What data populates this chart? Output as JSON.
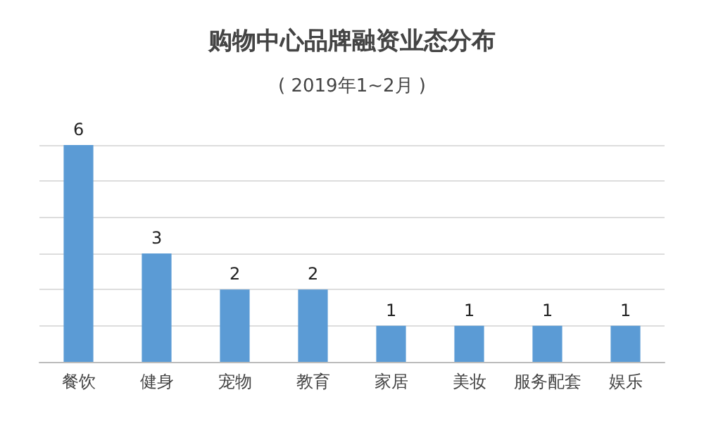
{
  "chart_data": {
    "type": "bar",
    "title": "购物中心品牌融资业态分布",
    "subtitle": "( 2019年1~2月 )",
    "categories": [
      "餐饮",
      "健身",
      "宠物",
      "教育",
      "家居",
      "美妆",
      "服务配套",
      "娱乐"
    ],
    "values": [
      6,
      3,
      2,
      2,
      1,
      1,
      1,
      1
    ],
    "color": "#5b9bd5",
    "ylim": [
      0,
      6
    ],
    "yticks": [
      {
        "value": 0,
        "label": null
      },
      {
        "value": 1,
        "label": null
      },
      {
        "value": 2,
        "label": null
      },
      {
        "value": 3,
        "label": null
      },
      {
        "value": 4,
        "label": null
      },
      {
        "value": 5,
        "label": null
      },
      {
        "value": 6,
        "label": null
      }
    ],
    "grid": "y",
    "tick_labels": "x",
    "data_labels": true
  }
}
